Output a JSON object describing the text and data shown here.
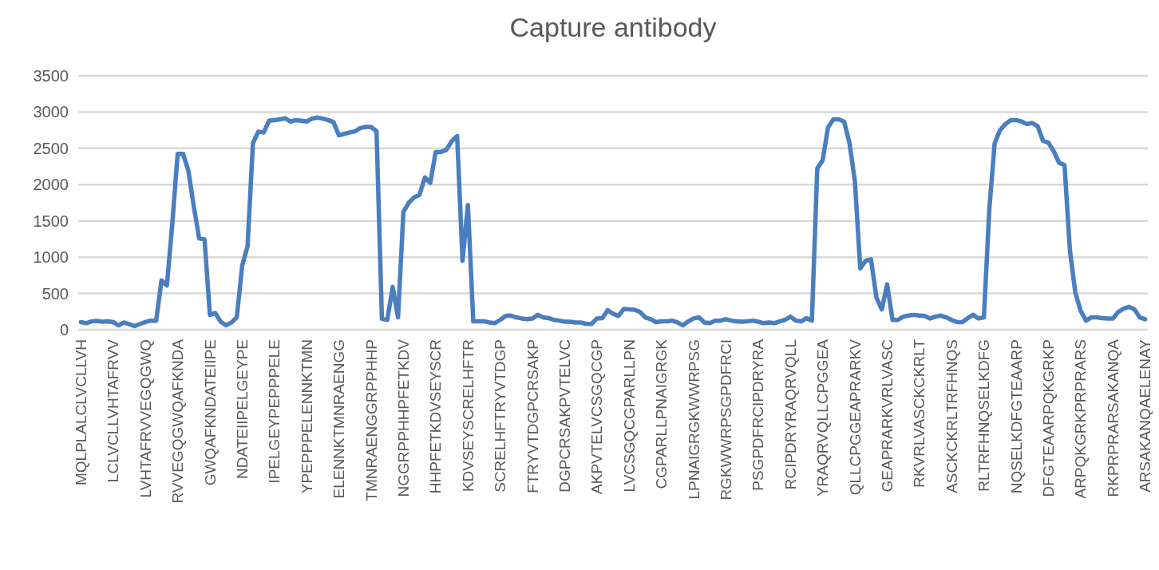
{
  "chart_data": {
    "type": "line",
    "title": "Capture antibody",
    "categories": [
      "MQLPLALCLVCLLVH",
      null,
      null,
      null,
      null,
      null,
      "LCLVCLLVHTAFRVV",
      null,
      null,
      null,
      null,
      null,
      "LVHTAFRVVEGQGWQ",
      null,
      null,
      null,
      null,
      null,
      "RVVEGQGWQAFKNDA",
      null,
      null,
      null,
      null,
      null,
      "GWQAFKNDATEIIPE",
      null,
      null,
      null,
      null,
      null,
      "NDATEIIPELGEYPE",
      null,
      null,
      null,
      null,
      null,
      "IPELGEYPEPPPELE",
      null,
      null,
      null,
      null,
      null,
      "YPEPPPELENNKTMN",
      null,
      null,
      null,
      null,
      null,
      "ELENNKTMNRAENGG",
      null,
      null,
      null,
      null,
      null,
      "TMNRAENGGRPPHHP",
      null,
      null,
      null,
      null,
      null,
      "NGGRPPHHPFETKDV",
      null,
      null,
      null,
      null,
      null,
      "HHPFETKDVSEYSCR",
      null,
      null,
      null,
      null,
      null,
      "KDVSEYSCRELHFTR",
      null,
      null,
      null,
      null,
      null,
      "SCRELHFTRYVTDGP",
      null,
      null,
      null,
      null,
      null,
      "FTRYVTDGPCRSAKP",
      null,
      null,
      null,
      null,
      null,
      "DGPCRSAKPVTELVC",
      null,
      null,
      null,
      null,
      null,
      "AKPVTELVCSGQCGP",
      null,
      null,
      null,
      null,
      null,
      "LVCSGQCGPARLLPN",
      null,
      null,
      null,
      null,
      null,
      "CGPARLLPNAIGRGK",
      null,
      null,
      null,
      null,
      null,
      "LPNAIGRGKWWRPSG",
      null,
      null,
      null,
      null,
      null,
      "RGKWWRPSGPDFRCI",
      null,
      null,
      null,
      null,
      null,
      "PSGPDFRCIPDRYRA",
      null,
      null,
      null,
      null,
      null,
      "RCIPDRYRAQRVQLL",
      null,
      null,
      null,
      null,
      null,
      "YRAQRVQLLCPGGEA",
      null,
      null,
      null,
      null,
      null,
      "QLLCPGGEAPRARKV",
      null,
      null,
      null,
      null,
      null,
      "GEAPRARKVRLVASC",
      null,
      null,
      null,
      null,
      null,
      "RKVRLVASCKCKRLT",
      null,
      null,
      null,
      null,
      null,
      "ASCKCKRLTRFHNQS",
      null,
      null,
      null,
      null,
      null,
      "RLTRFHNQSELKDFG",
      null,
      null,
      null,
      null,
      null,
      "NQSELKDFGTEAARP",
      null,
      null,
      null,
      null,
      null,
      "DFGTEAARPQKGRKP",
      null,
      null,
      null,
      null,
      null,
      "ARPQKGRKPRPRARS",
      null,
      null,
      null,
      null,
      null,
      "RKPRPRARSAKANQA",
      null,
      null,
      null,
      null,
      null,
      "ARSAKANQAELENAY"
    ],
    "series": [
      {
        "color": "#4a7ebf",
        "values": [
          105,
          90,
          115,
          120,
          110,
          115,
          105,
          60,
          100,
          75,
          50,
          80,
          105,
          125,
          125,
          680,
          610,
          1460,
          2425,
          2425,
          2190,
          1700,
          1260,
          1245,
          205,
          230,
          110,
          60,
          100,
          170,
          880,
          1150,
          2570,
          2730,
          2720,
          2880,
          2890,
          2900,
          2915,
          2870,
          2890,
          2880,
          2870,
          2910,
          2925,
          2910,
          2890,
          2860,
          2680,
          2700,
          2720,
          2735,
          2780,
          2795,
          2795,
          2735,
          150,
          135,
          590,
          170,
          1625,
          1750,
          1825,
          1860,
          2100,
          2025,
          2450,
          2450,
          2480,
          2600,
          2670,
          950,
          1720,
          115,
          115,
          115,
          100,
          90,
          135,
          190,
          195,
          170,
          155,
          145,
          155,
          205,
          170,
          160,
          135,
          125,
          110,
          110,
          100,
          100,
          80,
          80,
          155,
          160,
          270,
          220,
          190,
          285,
          280,
          275,
          245,
          170,
          145,
          105,
          115,
          115,
          125,
          100,
          60,
          115,
          155,
          170,
          100,
          90,
          125,
          125,
          145,
          125,
          115,
          110,
          115,
          125,
          110,
          90,
          100,
          90,
          115,
          135,
          180,
          125,
          115,
          160,
          125,
          2225,
          2335,
          2790,
          2900,
          2900,
          2870,
          2570,
          2045,
          845,
          950,
          970,
          445,
          280,
          625,
          135,
          135,
          180,
          195,
          205,
          195,
          190,
          155,
          180,
          195,
          170,
          135,
          105,
          105,
          160,
          205,
          155,
          170,
          1650,
          2570,
          2750,
          2835,
          2890,
          2890,
          2870,
          2835,
          2850,
          2805,
          2605,
          2580,
          2460,
          2300,
          2270,
          1100,
          515,
          260,
          125,
          170,
          170,
          160,
          155,
          155,
          245,
          290,
          315,
          280,
          170,
          145
        ]
      }
    ],
    "ylim": [
      0,
      3500
    ],
    "yticks": [
      0,
      500,
      1000,
      1500,
      2000,
      2500,
      3000,
      3500
    ],
    "grid": "y",
    "line_style": "solid",
    "marker": "none"
  }
}
